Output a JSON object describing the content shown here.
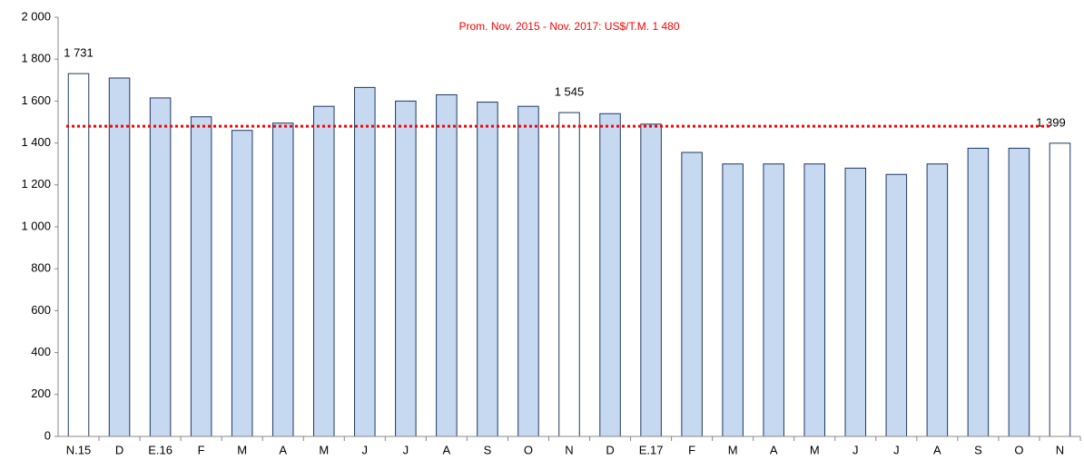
{
  "chart_data": {
    "type": "bar",
    "categories": [
      "N.15",
      "D",
      "E.16",
      "F",
      "M",
      "A",
      "M",
      "J",
      "J",
      "A",
      "S",
      "O",
      "N",
      "D",
      "E.17",
      "F",
      "M",
      "A",
      "M",
      "J",
      "J",
      "A",
      "S",
      "O",
      "N"
    ],
    "values": [
      1731,
      1710,
      1615,
      1525,
      1460,
      1495,
      1575,
      1665,
      1600,
      1630,
      1595,
      1575,
      1545,
      1540,
      1490,
      1355,
      1300,
      1300,
      1300,
      1280,
      1250,
      1300,
      1375,
      1375,
      1399
    ],
    "value_labels": [
      "1 731",
      null,
      null,
      null,
      null,
      null,
      null,
      null,
      null,
      null,
      null,
      null,
      "1 545",
      null,
      null,
      null,
      null,
      null,
      null,
      null,
      null,
      null,
      null,
      null,
      "1 399"
    ],
    "colors": [
      "#ffffff",
      "#c6d9f1",
      "#c6d9f1",
      "#c6d9f1",
      "#c6d9f1",
      "#c6d9f1",
      "#c6d9f1",
      "#c6d9f1",
      "#c6d9f1",
      "#c6d9f1",
      "#c6d9f1",
      "#c6d9f1",
      "#ffffff",
      "#c6d9f1",
      "#c6d9f1",
      "#c6d9f1",
      "#c6d9f1",
      "#c6d9f1",
      "#c6d9f1",
      "#c6d9f1",
      "#c6d9f1",
      "#c6d9f1",
      "#c6d9f1",
      "#c6d9f1",
      "#ffffff"
    ],
    "edge_color": "#1f3864",
    "ylim": [
      0,
      2000
    ],
    "yticks": [
      0,
      200,
      400,
      600,
      800,
      {
        "value": 1000,
        "label": "1 000"
      },
      {
        "value": 1200,
        "label": "1 200"
      },
      {
        "value": 1400,
        "label": "1 400"
      },
      {
        "value": 1600,
        "label": "1 600"
      },
      {
        "value": 1800,
        "label": "1 800"
      },
      {
        "value": 2000,
        "label": "2 000"
      }
    ],
    "average": {
      "value": 1480,
      "label": "Prom. Nov. 2015 - Nov. 2017: US$/T.M. 1 480",
      "color": "#ff0000"
    }
  }
}
